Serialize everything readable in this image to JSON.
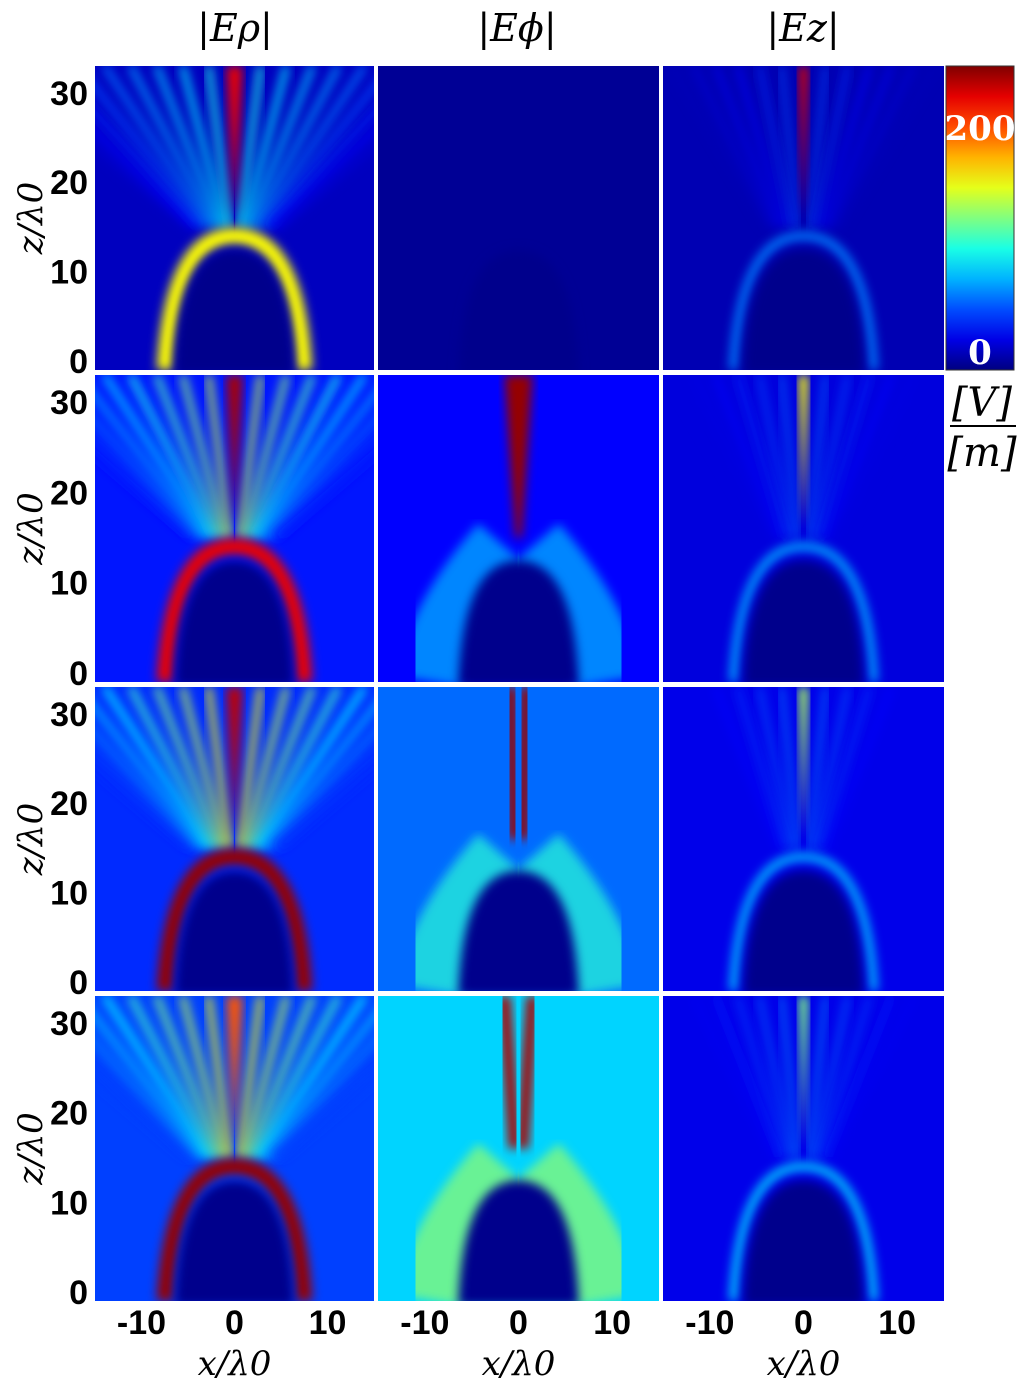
{
  "column_titles": [
    "|Eρ|",
    "|Eϕ|",
    "|Ez|"
  ],
  "colorbar": {
    "colormap": "jet",
    "range": [
      0,
      240
    ],
    "ticks": [
      {
        "value": 200,
        "label": "200"
      },
      {
        "value": 0,
        "label": "0"
      }
    ],
    "units_numerator": "[V]",
    "units_denominator": "[m]"
  },
  "chart_data": {
    "type": "heatmap",
    "rows": 4,
    "columns": 3,
    "xlabel": "x/λ0",
    "ylabel": "z/λ0",
    "xlim": [
      -15,
      15
    ],
    "ylim": [
      -1,
      33
    ],
    "xticks": [
      {
        "value": -10,
        "label": "-10"
      },
      {
        "value": 0,
        "label": "0"
      },
      {
        "value": 10,
        "label": "10"
      }
    ],
    "yticks": [
      {
        "value": 0,
        "label": "0"
      },
      {
        "value": 10,
        "label": "10"
      },
      {
        "value": 20,
        "label": "20"
      },
      {
        "value": 30,
        "label": "30"
      }
    ],
    "panels": [
      {
        "row": 0,
        "col": 0,
        "field": "E_rho",
        "peak": 215,
        "arc": 150,
        "bg": 15
      },
      {
        "row": 0,
        "col": 1,
        "field": "E_phi",
        "peak": 0,
        "arc": 0,
        "bg": 5
      },
      {
        "row": 0,
        "col": 2,
        "field": "E_z",
        "peak": 220,
        "arc": 60,
        "bg": 12
      },
      {
        "row": 1,
        "col": 0,
        "field": "E_rho",
        "peak": 230,
        "arc": 215,
        "bg": 35
      },
      {
        "row": 1,
        "col": 1,
        "field": "E_phi",
        "peak": 235,
        "arc": 25,
        "bg": 30
      },
      {
        "row": 1,
        "col": 2,
        "field": "E_z",
        "peak": 150,
        "arc": 70,
        "bg": 22
      },
      {
        "row": 2,
        "col": 0,
        "field": "E_rho",
        "peak": 225,
        "arc": 235,
        "bg": 40
      },
      {
        "row": 2,
        "col": 1,
        "field": "E_phi",
        "peak": 235,
        "arc": 45,
        "bg": 55
      },
      {
        "row": 2,
        "col": 2,
        "field": "E_z",
        "peak": 130,
        "arc": 75,
        "bg": 25
      },
      {
        "row": 3,
        "col": 0,
        "field": "E_rho",
        "peak": 190,
        "arc": 235,
        "bg": 45
      },
      {
        "row": 3,
        "col": 1,
        "field": "E_phi",
        "peak": 230,
        "arc": 65,
        "bg": 80
      },
      {
        "row": 3,
        "col": 2,
        "field": "E_z",
        "peak": 120,
        "arc": 80,
        "bg": 25
      }
    ]
  }
}
